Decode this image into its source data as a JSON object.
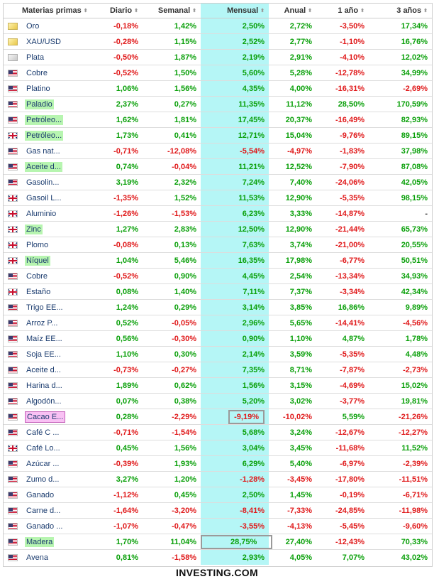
{
  "headers": {
    "name": "Materias primas",
    "diario": "Diario",
    "semanal": "Semanal",
    "mensual": "Mensual",
    "anual": "Anual",
    "y1": "1 año",
    "y3": "3 años",
    "sort_glyph": "⬍"
  },
  "rows": [
    {
      "flag": "gold",
      "name": "Oro",
      "hl": "",
      "d": "-0,18%",
      "w": "1,42%",
      "m": "2,50%",
      "a": "2,72%",
      "y1": "-3,50%",
      "y3": "17,34%"
    },
    {
      "flag": "gold",
      "name": "XAU/USD",
      "hl": "",
      "d": "-0,28%",
      "w": "1,15%",
      "m": "2,52%",
      "a": "2,77%",
      "y1": "-1,10%",
      "y3": "16,76%"
    },
    {
      "flag": "silver",
      "name": "Plata",
      "hl": "",
      "d": "-0,50%",
      "w": "1,87%",
      "m": "2,19%",
      "a": "2,91%",
      "y1": "-4,10%",
      "y3": "12,02%"
    },
    {
      "flag": "us",
      "name": "Cobre",
      "hl": "",
      "d": "-0,52%",
      "w": "1,50%",
      "m": "5,60%",
      "a": "5,28%",
      "y1": "-12,78%",
      "y3": "34,99%"
    },
    {
      "flag": "us",
      "name": "Platino",
      "hl": "",
      "d": "1,06%",
      "w": "1,56%",
      "m": "4,35%",
      "a": "4,00%",
      "y1": "-16,31%",
      "y3": "-2,69%"
    },
    {
      "flag": "us",
      "name": "Paladio",
      "hl": "green",
      "d": "2,37%",
      "w": "0,27%",
      "m": "11,35%",
      "a": "11,12%",
      "y1": "28,50%",
      "y3": "170,59%"
    },
    {
      "flag": "us",
      "name": "Petróleo...",
      "hl": "green",
      "d": "1,62%",
      "w": "1,81%",
      "m": "17,45%",
      "a": "20,37%",
      "y1": "-16,49%",
      "y3": "82,93%"
    },
    {
      "flag": "uk",
      "name": "Petróleo...",
      "hl": "green",
      "d": "1,73%",
      "w": "0,41%",
      "m": "12,71%",
      "a": "15,04%",
      "y1": "-9,76%",
      "y3": "89,15%"
    },
    {
      "flag": "us",
      "name": "Gas nat...",
      "hl": "",
      "d": "-0,71%",
      "w": "-12,08%",
      "m": "-5,54%",
      "a": "-4,97%",
      "y1": "-1,83%",
      "y3": "37,98%"
    },
    {
      "flag": "us",
      "name": "Aceite d...",
      "hl": "green",
      "d": "0,74%",
      "w": "-0,04%",
      "m": "11,21%",
      "a": "12,52%",
      "y1": "-7,90%",
      "y3": "87,08%"
    },
    {
      "flag": "us",
      "name": "Gasolin...",
      "hl": "",
      "d": "3,19%",
      "w": "2,32%",
      "m": "7,24%",
      "a": "7,40%",
      "y1": "-24,06%",
      "y3": "42,05%"
    },
    {
      "flag": "uk",
      "name": "Gasoil L...",
      "hl": "",
      "d": "-1,35%",
      "w": "1,52%",
      "m": "11,53%",
      "a": "12,90%",
      "y1": "-5,35%",
      "y3": "98,15%"
    },
    {
      "flag": "uk",
      "name": "Aluminio",
      "hl": "",
      "d": "-1,26%",
      "w": "-1,53%",
      "m": "6,23%",
      "a": "3,33%",
      "y1": "-14,87%",
      "y3": "-"
    },
    {
      "flag": "uk",
      "name": "Zinc",
      "hl": "green",
      "d": "1,27%",
      "w": "2,83%",
      "m": "12,50%",
      "a": "12,90%",
      "y1": "-21,44%",
      "y3": "65,73%"
    },
    {
      "flag": "uk",
      "name": "Plomo",
      "hl": "",
      "d": "-0,08%",
      "w": "0,13%",
      "m": "7,63%",
      "a": "3,74%",
      "y1": "-21,00%",
      "y3": "20,55%"
    },
    {
      "flag": "uk",
      "name": "Níquel",
      "hl": "green",
      "d": "1,04%",
      "w": "5,46%",
      "m": "16,35%",
      "a": "17,98%",
      "y1": "-6,77%",
      "y3": "50,51%"
    },
    {
      "flag": "us",
      "name": "Cobre",
      "hl": "",
      "d": "-0,52%",
      "w": "0,90%",
      "m": "4,45%",
      "a": "2,54%",
      "y1": "-13,34%",
      "y3": "34,93%"
    },
    {
      "flag": "uk",
      "name": "Estaño",
      "hl": "",
      "d": "0,08%",
      "w": "1,40%",
      "m": "7,11%",
      "a": "7,37%",
      "y1": "-3,34%",
      "y3": "42,34%"
    },
    {
      "flag": "us",
      "name": "Trigo EE...",
      "hl": "",
      "d": "1,24%",
      "w": "0,29%",
      "m": "3,14%",
      "a": "3,85%",
      "y1": "16,86%",
      "y3": "9,89%"
    },
    {
      "flag": "us",
      "name": "Arroz P...",
      "hl": "",
      "d": "0,52%",
      "w": "-0,05%",
      "m": "2,96%",
      "a": "5,65%",
      "y1": "-14,41%",
      "y3": "-4,56%"
    },
    {
      "flag": "us",
      "name": "Maíz EE...",
      "hl": "",
      "d": "0,56%",
      "w": "-0,30%",
      "m": "0,90%",
      "a": "1,10%",
      "y1": "4,87%",
      "y3": "1,78%"
    },
    {
      "flag": "us",
      "name": "Soja EE...",
      "hl": "",
      "d": "1,10%",
      "w": "0,30%",
      "m": "2,14%",
      "a": "3,59%",
      "y1": "-5,35%",
      "y3": "4,48%"
    },
    {
      "flag": "us",
      "name": "Aceite d...",
      "hl": "",
      "d": "-0,73%",
      "w": "-0,27%",
      "m": "7,35%",
      "a": "8,71%",
      "y1": "-7,87%",
      "y3": "-2,73%"
    },
    {
      "flag": "us",
      "name": "Harina d...",
      "hl": "",
      "d": "1,89%",
      "w": "0,62%",
      "m": "1,56%",
      "a": "3,15%",
      "y1": "-4,69%",
      "y3": "15,02%"
    },
    {
      "flag": "us",
      "name": "Algodón...",
      "hl": "",
      "d": "0,07%",
      "w": "0,38%",
      "m": "5,20%",
      "a": "3,02%",
      "y1": "-3,77%",
      "y3": "19,81%"
    },
    {
      "flag": "us",
      "name": "Cacao E...",
      "hl": "pink",
      "d": "0,28%",
      "w": "-2,29%",
      "m": "-9,19%",
      "a": "-10,02%",
      "y1": "5,59%",
      "y3": "-21,26%",
      "box": "m"
    },
    {
      "flag": "us",
      "name": "Café C ...",
      "hl": "",
      "d": "-0,71%",
      "w": "-1,54%",
      "m": "5,68%",
      "a": "3,24%",
      "y1": "-12,67%",
      "y3": "-12,27%"
    },
    {
      "flag": "uk",
      "name": "Café Lo...",
      "hl": "",
      "d": "0,45%",
      "w": "1,56%",
      "m": "3,04%",
      "a": "3,45%",
      "y1": "-11,68%",
      "y3": "11,52%"
    },
    {
      "flag": "us",
      "name": "Azúcar ...",
      "hl": "",
      "d": "-0,39%",
      "w": "1,93%",
      "m": "6,29%",
      "a": "5,40%",
      "y1": "-6,97%",
      "y3": "-2,39%"
    },
    {
      "flag": "us",
      "name": "Zumo d...",
      "hl": "",
      "d": "3,27%",
      "w": "1,20%",
      "m": "-1,28%",
      "a": "-3,45%",
      "y1": "-17,80%",
      "y3": "-11,51%"
    },
    {
      "flag": "us",
      "name": "Ganado",
      "hl": "",
      "d": "-1,12%",
      "w": "0,45%",
      "m": "2,50%",
      "a": "1,45%",
      "y1": "-0,19%",
      "y3": "-6,71%"
    },
    {
      "flag": "us",
      "name": "Carne d...",
      "hl": "",
      "d": "-1,64%",
      "w": "-3,20%",
      "m": "-8,41%",
      "a": "-7,33%",
      "y1": "-24,85%",
      "y3": "-11,98%"
    },
    {
      "flag": "us",
      "name": "Ganado ...",
      "hl": "",
      "d": "-1,07%",
      "w": "-0,47%",
      "m": "-3,55%",
      "a": "-4,13%",
      "y1": "-5,45%",
      "y3": "-9,60%"
    },
    {
      "flag": "us",
      "name": "Madera",
      "hl": "green",
      "d": "1,70%",
      "w": "11,04%",
      "m": "28,75%",
      "a": "27,40%",
      "y1": "-12,43%",
      "y3": "70,33%",
      "box": "m-wide"
    },
    {
      "flag": "us",
      "name": "Avena",
      "hl": "",
      "d": "0,81%",
      "w": "-1,58%",
      "m": "2,93%",
      "a": "4,05%",
      "y1": "7,07%",
      "y3": "43,02%"
    }
  ],
  "footer": "INVESTING.COM",
  "colors": {
    "positive": "#0aa00a",
    "negative": "#e0191a",
    "highlight_column": "#b5f6f6",
    "highlight_green": "#b7f5b0",
    "highlight_pink": "#f9c1f4"
  }
}
